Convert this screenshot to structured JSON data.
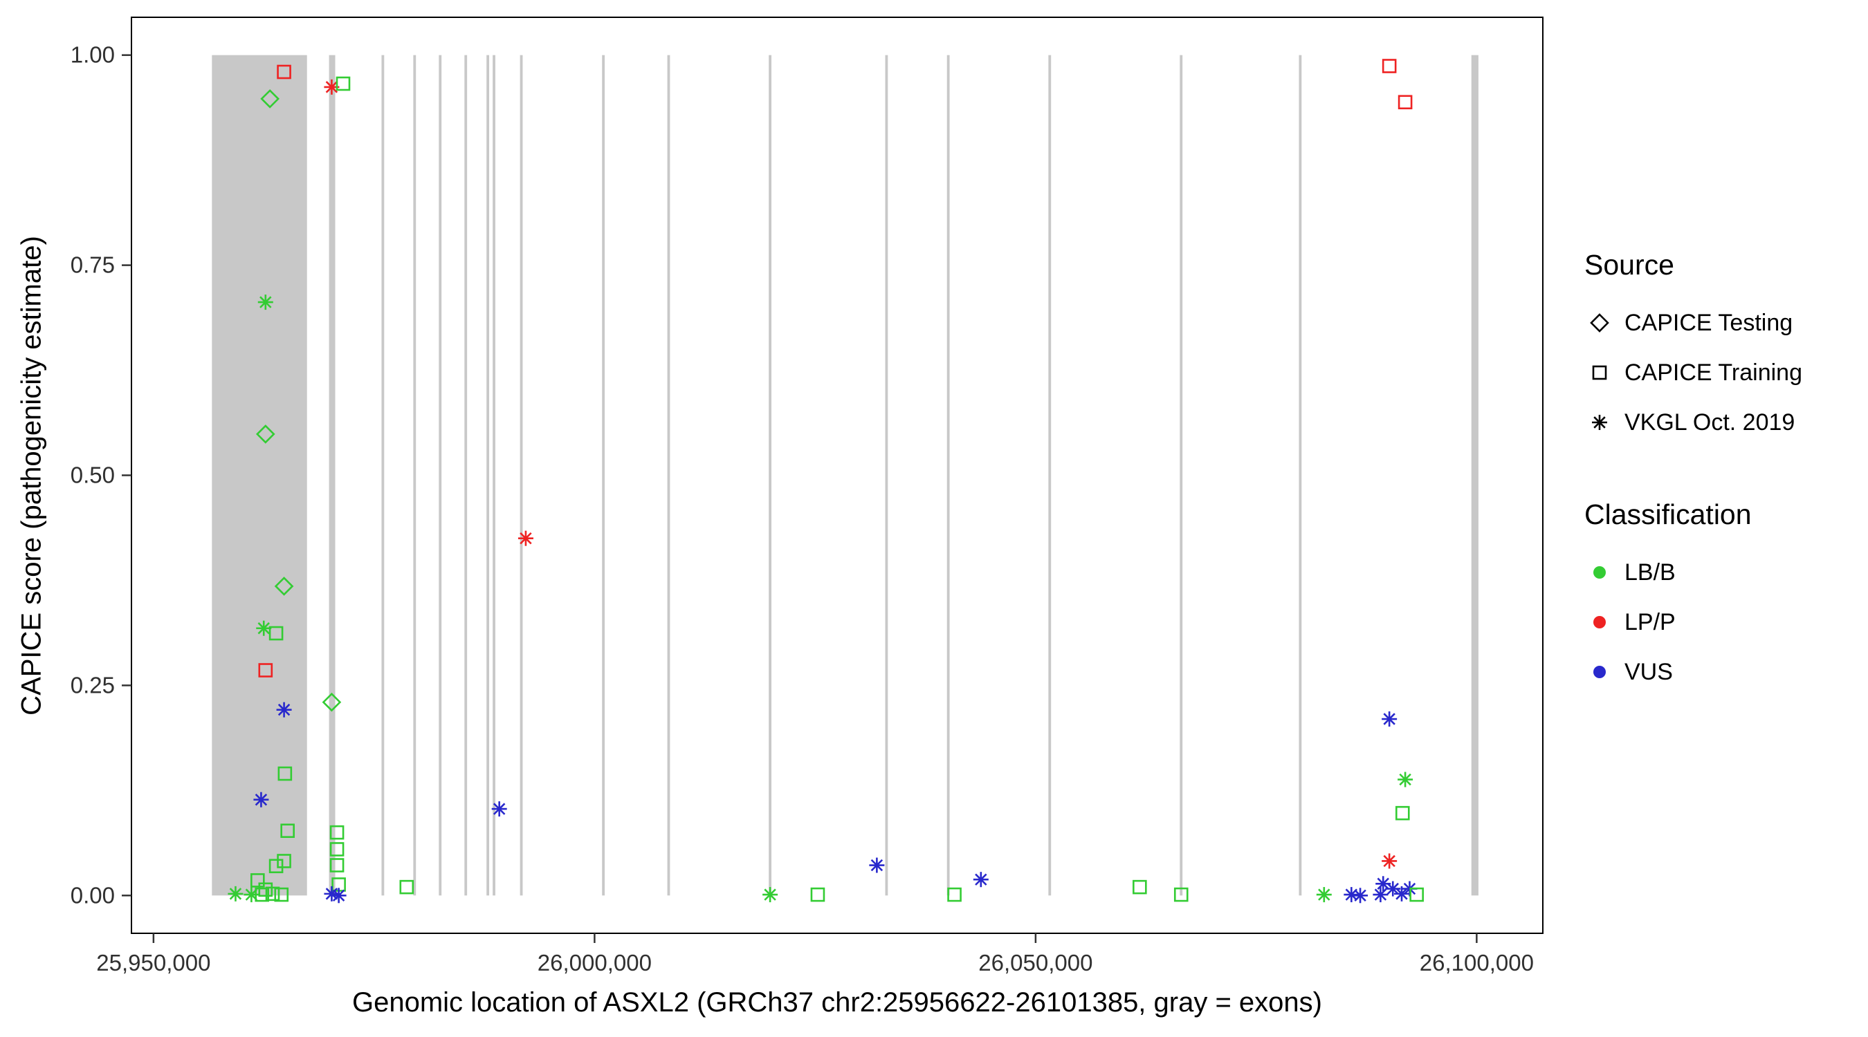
{
  "chart_data": {
    "type": "scatter",
    "title": "",
    "xlabel": "Genomic location of ASXL2 (GRCh37 chr2:25956622-26101385, gray = exons)",
    "ylabel": "CAPICE score (pathogenicity estimate)",
    "xlim": [
      25947500,
      26107500
    ],
    "ylim": [
      -0.045,
      1.045
    ],
    "x_ticks": [
      {
        "value": 25950000,
        "label": "25,950,000"
      },
      {
        "value": 26000000,
        "label": "26,000,000"
      },
      {
        "value": 26050000,
        "label": "26,050,000"
      },
      {
        "value": 26100000,
        "label": "26,100,000"
      }
    ],
    "y_ticks": [
      {
        "value": 0.0,
        "label": "0.00"
      },
      {
        "value": 0.25,
        "label": "0.25"
      },
      {
        "value": 0.5,
        "label": "0.50"
      },
      {
        "value": 0.75,
        "label": "0.75"
      },
      {
        "value": 1.0,
        "label": "1.00"
      }
    ],
    "grid": false,
    "exon_color": "#c8c8c8",
    "exon_y_range": [
      0,
      1
    ],
    "exons": [
      [
        25956622,
        25967400
      ],
      [
        25969900,
        25970600
      ],
      [
        25975850,
        25976150
      ],
      [
        25979450,
        25979750
      ],
      [
        25982350,
        25982650
      ],
      [
        25985250,
        25985550
      ],
      [
        25987750,
        25988050
      ],
      [
        25988450,
        25988750
      ],
      [
        25991550,
        25991850
      ],
      [
        26000850,
        26001150
      ],
      [
        26008250,
        26008550
      ],
      [
        26019750,
        26020050
      ],
      [
        26032950,
        26033250
      ],
      [
        26039950,
        26040250
      ],
      [
        26051450,
        26051750
      ],
      [
        26066350,
        26066650
      ],
      [
        26079850,
        26080150
      ],
      [
        26099400,
        26100200
      ]
    ],
    "shape_by_source": {
      "CAPICE Testing": "diamond",
      "CAPICE Training": "square",
      "VKGL Oct. 2019": "asterisk"
    },
    "color_by_class": {
      "LB/B": "#33cc33",
      "LP/P": "#ee2222",
      "VUS": "#2828cc"
    },
    "legend": {
      "source": {
        "title": "Source",
        "items": [
          {
            "label": "CAPICE Testing",
            "shape": "diamond"
          },
          {
            "label": "CAPICE Training",
            "shape": "square"
          },
          {
            "label": "VKGL Oct. 2019",
            "shape": "asterisk"
          }
        ]
      },
      "classification": {
        "title": "Classification",
        "items": [
          {
            "label": "LB/B",
            "color_key": "LB/B"
          },
          {
            "label": "LP/P",
            "color_key": "LP/P"
          },
          {
            "label": "VUS",
            "color_key": "VUS"
          }
        ]
      }
    },
    "points": [
      {
        "x": 25964800,
        "y": 0.98,
        "source": "CAPICE Training",
        "class": "LP/P"
      },
      {
        "x": 25963200,
        "y": 0.948,
        "source": "CAPICE Testing",
        "class": "LB/B"
      },
      {
        "x": 25962700,
        "y": 0.706,
        "source": "VKGL Oct. 2019",
        "class": "LB/B"
      },
      {
        "x": 25962700,
        "y": 0.549,
        "source": "CAPICE Testing",
        "class": "LB/B"
      },
      {
        "x": 25964800,
        "y": 0.368,
        "source": "CAPICE Testing",
        "class": "LB/B"
      },
      {
        "x": 25962500,
        "y": 0.318,
        "source": "VKGL Oct. 2019",
        "class": "LB/B"
      },
      {
        "x": 25963900,
        "y": 0.312,
        "source": "CAPICE Training",
        "class": "LB/B"
      },
      {
        "x": 25962700,
        "y": 0.268,
        "source": "CAPICE Training",
        "class": "LP/P"
      },
      {
        "x": 25964800,
        "y": 0.221,
        "source": "VKGL Oct. 2019",
        "class": "VUS"
      },
      {
        "x": 25964900,
        "y": 0.145,
        "source": "CAPICE Training",
        "class": "LB/B"
      },
      {
        "x": 25962200,
        "y": 0.114,
        "source": "VKGL Oct. 2019",
        "class": "VUS"
      },
      {
        "x": 25965200,
        "y": 0.077,
        "source": "CAPICE Training",
        "class": "LB/B"
      },
      {
        "x": 25964800,
        "y": 0.041,
        "source": "CAPICE Training",
        "class": "LB/B"
      },
      {
        "x": 25963900,
        "y": 0.035,
        "source": "CAPICE Training",
        "class": "LB/B"
      },
      {
        "x": 25959300,
        "y": 0.002,
        "source": "VKGL Oct. 2019",
        "class": "LB/B"
      },
      {
        "x": 25961800,
        "y": 0.018,
        "source": "CAPICE Training",
        "class": "LB/B"
      },
      {
        "x": 25962700,
        "y": 0.007,
        "source": "CAPICE Training",
        "class": "LB/B"
      },
      {
        "x": 25963500,
        "y": 0.002,
        "source": "CAPICE Training",
        "class": "LB/B"
      },
      {
        "x": 25964500,
        "y": 0.001,
        "source": "CAPICE Training",
        "class": "LB/B"
      },
      {
        "x": 25961100,
        "y": 0.001,
        "source": "VKGL Oct. 2019",
        "class": "LB/B"
      },
      {
        "x": 25962300,
        "y": 0.001,
        "source": "CAPICE Training",
        "class": "LB/B"
      },
      {
        "x": 25970200,
        "y": 0.962,
        "source": "VKGL Oct. 2019",
        "class": "LP/P"
      },
      {
        "x": 25971500,
        "y": 0.966,
        "source": "CAPICE Training",
        "class": "LB/B"
      },
      {
        "x": 25970200,
        "y": 0.23,
        "source": "CAPICE Testing",
        "class": "LB/B"
      },
      {
        "x": 25970800,
        "y": 0.075,
        "source": "CAPICE Training",
        "class": "LB/B"
      },
      {
        "x": 25970800,
        "y": 0.055,
        "source": "CAPICE Training",
        "class": "LB/B"
      },
      {
        "x": 25970800,
        "y": 0.036,
        "source": "CAPICE Training",
        "class": "LB/B"
      },
      {
        "x": 25971000,
        "y": 0.013,
        "source": "CAPICE Training",
        "class": "LB/B"
      },
      {
        "x": 25970200,
        "y": 0.002,
        "source": "VKGL Oct. 2019",
        "class": "VUS"
      },
      {
        "x": 25971000,
        "y": 0.0,
        "source": "VKGL Oct. 2019",
        "class": "VUS"
      },
      {
        "x": 25978700,
        "y": 0.01,
        "source": "CAPICE Training",
        "class": "LB/B"
      },
      {
        "x": 25989200,
        "y": 0.103,
        "source": "VKGL Oct. 2019",
        "class": "VUS"
      },
      {
        "x": 25992200,
        "y": 0.425,
        "source": "VKGL Oct. 2019",
        "class": "LP/P"
      },
      {
        "x": 26019900,
        "y": 0.001,
        "source": "VKGL Oct. 2019",
        "class": "LB/B"
      },
      {
        "x": 26025300,
        "y": 0.001,
        "source": "CAPICE Training",
        "class": "LB/B"
      },
      {
        "x": 26032000,
        "y": 0.036,
        "source": "VKGL Oct. 2019",
        "class": "VUS"
      },
      {
        "x": 26040800,
        "y": 0.001,
        "source": "CAPICE Training",
        "class": "LB/B"
      },
      {
        "x": 26043800,
        "y": 0.019,
        "source": "VKGL Oct. 2019",
        "class": "VUS"
      },
      {
        "x": 26061800,
        "y": 0.01,
        "source": "CAPICE Training",
        "class": "LB/B"
      },
      {
        "x": 26066500,
        "y": 0.001,
        "source": "CAPICE Training",
        "class": "LB/B"
      },
      {
        "x": 26082700,
        "y": 0.001,
        "source": "VKGL Oct. 2019",
        "class": "LB/B"
      },
      {
        "x": 26085800,
        "y": 0.001,
        "source": "VKGL Oct. 2019",
        "class": "VUS"
      },
      {
        "x": 26086800,
        "y": 0.0,
        "source": "VKGL Oct. 2019",
        "class": "VUS"
      },
      {
        "x": 26090100,
        "y": 0.987,
        "source": "CAPICE Training",
        "class": "LP/P"
      },
      {
        "x": 26091900,
        "y": 0.944,
        "source": "CAPICE Training",
        "class": "LP/P"
      },
      {
        "x": 26090100,
        "y": 0.21,
        "source": "VKGL Oct. 2019",
        "class": "VUS"
      },
      {
        "x": 26091900,
        "y": 0.138,
        "source": "VKGL Oct. 2019",
        "class": "LB/B"
      },
      {
        "x": 26091600,
        "y": 0.098,
        "source": "CAPICE Training",
        "class": "LB/B"
      },
      {
        "x": 26090100,
        "y": 0.041,
        "source": "VKGL Oct. 2019",
        "class": "LP/P"
      },
      {
        "x": 26089400,
        "y": 0.014,
        "source": "VKGL Oct. 2019",
        "class": "VUS"
      },
      {
        "x": 26090500,
        "y": 0.008,
        "source": "VKGL Oct. 2019",
        "class": "VUS"
      },
      {
        "x": 26091500,
        "y": 0.002,
        "source": "VKGL Oct. 2019",
        "class": "VUS"
      },
      {
        "x": 26092400,
        "y": 0.008,
        "source": "VKGL Oct. 2019",
        "class": "VUS"
      },
      {
        "x": 26093200,
        "y": 0.001,
        "source": "CAPICE Training",
        "class": "LB/B"
      },
      {
        "x": 26089100,
        "y": 0.001,
        "source": "VKGL Oct. 2019",
        "class": "VUS"
      }
    ]
  }
}
